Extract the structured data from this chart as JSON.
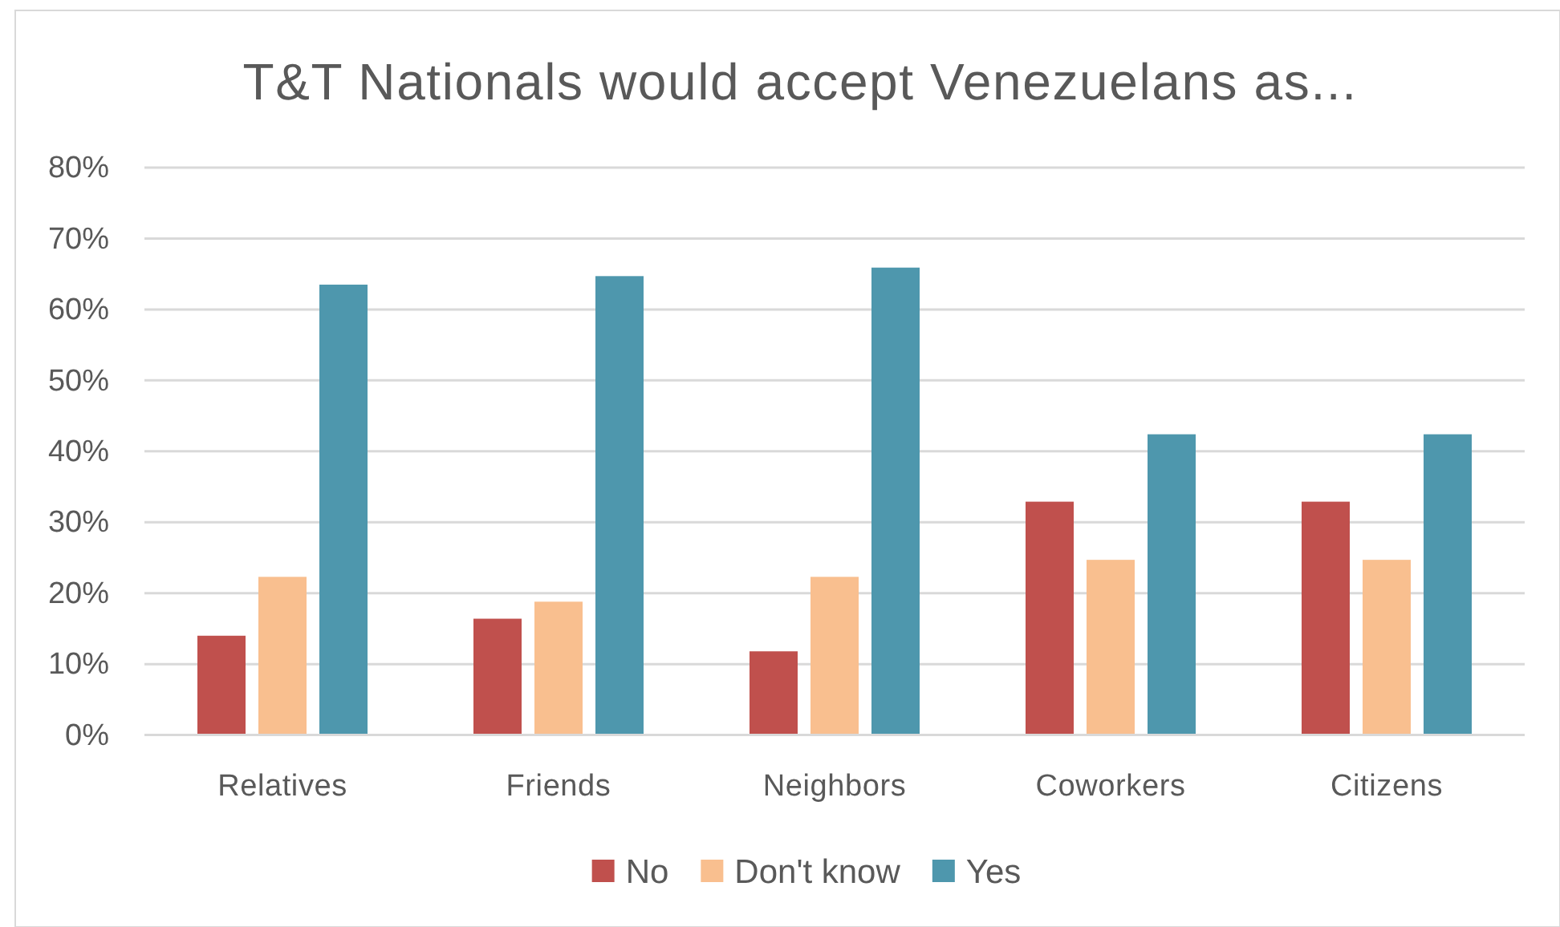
{
  "chart_data": {
    "type": "bar",
    "title": "T&T Nationals would accept Venezuelans as...",
    "categories": [
      "Relatives",
      "Friends",
      "Neighbors",
      "Coworkers",
      "Citizens"
    ],
    "series": [
      {
        "name": "No",
        "color": "#c0504d",
        "values": [
          14.0,
          16.4,
          11.8,
          32.9,
          32.9
        ]
      },
      {
        "name": "Don't know",
        "color": "#f9bf8f",
        "values": [
          22.3,
          18.8,
          22.3,
          24.7,
          24.7
        ]
      },
      {
        "name": "Yes",
        "color": "#4e97ad",
        "values": [
          63.5,
          64.7,
          65.9,
          42.4,
          42.4
        ]
      }
    ],
    "ylim": [
      0,
      80
    ],
    "yticks": [
      {
        "value": 0,
        "label": "0%"
      },
      {
        "value": 10,
        "label": "10%"
      },
      {
        "value": 20,
        "label": "20%"
      },
      {
        "value": 30,
        "label": "30%"
      },
      {
        "value": 40,
        "label": "40%"
      },
      {
        "value": 50,
        "label": "50%"
      },
      {
        "value": 60,
        "label": "60%"
      },
      {
        "value": 70,
        "label": "70%"
      },
      {
        "value": 80,
        "label": "80%"
      }
    ],
    "grid": "y",
    "legend": "bottom"
  }
}
